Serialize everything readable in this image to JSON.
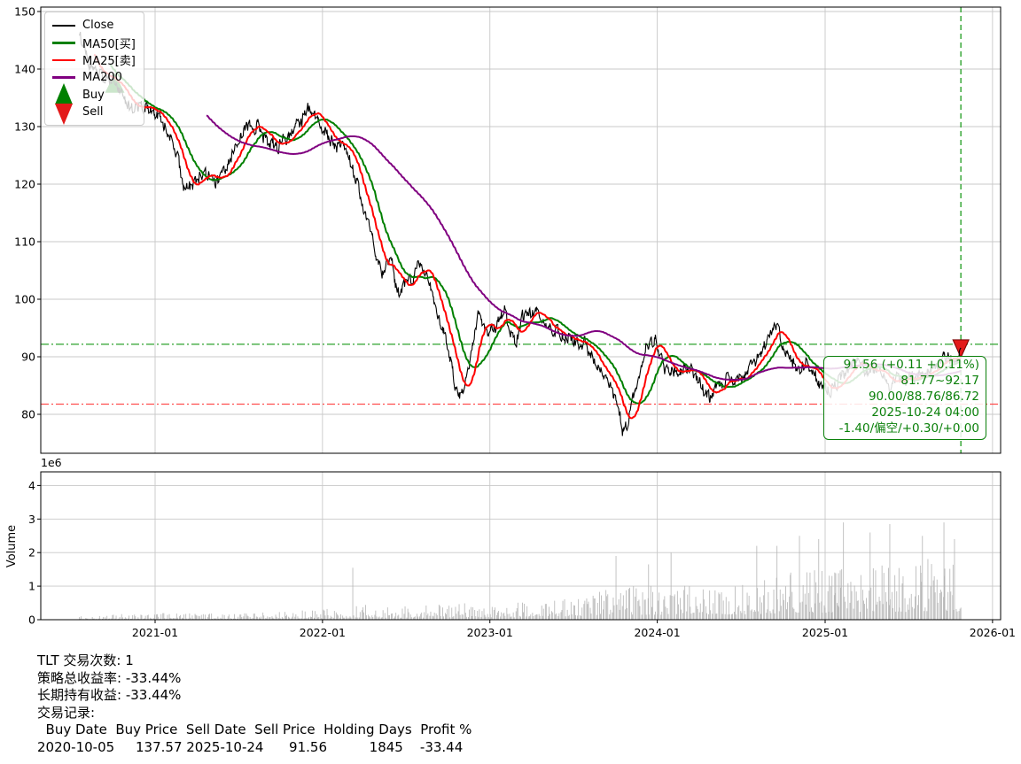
{
  "ticker": "TLT",
  "legend": {
    "items": [
      {
        "label": "Close",
        "color": "#000000",
        "kind": "line"
      },
      {
        "label": "MA50[买]",
        "color": "#008000",
        "kind": "line"
      },
      {
        "label": "MA25[卖]",
        "color": "#ff0000",
        "kind": "line"
      },
      {
        "label": "MA200",
        "color": "#800080",
        "kind": "line"
      },
      {
        "label": "Buy",
        "color": "#008000",
        "kind": "triangle-up"
      },
      {
        "label": "Sell",
        "color": "#e31a1a",
        "kind": "triangle-down"
      }
    ]
  },
  "annotation": {
    "color": "#0a800a",
    "lines": [
      "91.56 (+0.11 +0.11%)",
      "81.77~92.17",
      "90.00/88.76/86.72",
      "2025-10-24 04:00",
      "-1.40/偏空/+0.30/+0.00"
    ]
  },
  "footer": {
    "lines": [
      "TLT 交易次数: 1",
      "策略总收益率: -33.44%",
      "长期持有收益: -33.44%",
      "交易记录:",
      "  Buy Date  Buy Price  Sell Date  Sell Price  Holding Days  Profit %",
      "2020-10-05     137.57 2025-10-24      91.56          1845    -33.44"
    ]
  },
  "trade_table": {
    "columns": [
      "Buy Date",
      "Buy Price",
      "Sell Date",
      "Sell Price",
      "Holding Days",
      "Profit %"
    ],
    "rows": [
      [
        "2020-10-05",
        "137.57",
        "2025-10-24",
        "91.56",
        "1845",
        "-33.44"
      ]
    ]
  },
  "stats": {
    "trades": 1,
    "strategy_return": "-33.44%",
    "buy_hold_return": "-33.44%"
  },
  "chart_data": [
    {
      "type": "line",
      "panel": "price",
      "x_range": [
        "2020-07-20",
        "2025-10-24"
      ],
      "x_ticks": [
        "2021-01",
        "2022-01",
        "2023-01",
        "2024-01",
        "2025-01",
        "2026-01"
      ],
      "y_ticks": [
        80,
        90,
        100,
        110,
        120,
        130,
        140,
        150
      ],
      "ylim": [
        70.8,
        150.8
      ],
      "grid": true,
      "legend_position": "upper-left",
      "series": [
        {
          "name": "Close",
          "color": "#000000",
          "width": 1.1,
          "anchors": [
            [
              "2020-07-20",
              146.0
            ],
            [
              "2020-08-05",
              142.5
            ],
            [
              "2020-08-24",
              139.5
            ],
            [
              "2020-09-10",
              138.5
            ],
            [
              "2020-10-05",
              137.57
            ],
            [
              "2020-10-26",
              134.8
            ],
            [
              "2020-11-16",
              133.0
            ],
            [
              "2020-12-10",
              133.5
            ],
            [
              "2021-01-04",
              132.0
            ],
            [
              "2021-01-25",
              130.2
            ],
            [
              "2021-02-16",
              125.0
            ],
            [
              "2021-03-08",
              118.8
            ],
            [
              "2021-03-29",
              120.0
            ],
            [
              "2021-04-19",
              121.8
            ],
            [
              "2021-05-10",
              119.8
            ],
            [
              "2021-06-01",
              122.0
            ],
            [
              "2021-06-21",
              125.5
            ],
            [
              "2021-07-19",
              130.0
            ],
            [
              "2021-08-09",
              130.3
            ],
            [
              "2021-09-07",
              127.0
            ],
            [
              "2021-09-28",
              126.3
            ],
            [
              "2021-10-18",
              128.5
            ],
            [
              "2021-11-15",
              131.0
            ],
            [
              "2021-12-03",
              133.2
            ],
            [
              "2021-12-20",
              131.8
            ],
            [
              "2022-01-10",
              129.0
            ],
            [
              "2022-02-01",
              126.5
            ],
            [
              "2022-02-22",
              125.8
            ],
            [
              "2022-03-01",
              124.8
            ],
            [
              "2022-03-28",
              117.0
            ],
            [
              "2022-04-19",
              110.5
            ],
            [
              "2022-05-09",
              104.8
            ],
            [
              "2022-06-01",
              106.5
            ],
            [
              "2022-06-14",
              100.8
            ],
            [
              "2022-07-05",
              102.8
            ],
            [
              "2022-08-01",
              105.8
            ],
            [
              "2022-08-22",
              102.5
            ],
            [
              "2022-09-13",
              97.0
            ],
            [
              "2022-10-03",
              91.5
            ],
            [
              "2022-10-24",
              82.3
            ],
            [
              "2022-11-10",
              86.5
            ],
            [
              "2022-12-07",
              98.0
            ],
            [
              "2022-12-29",
              93.5
            ],
            [
              "2023-01-18",
              95.8
            ],
            [
              "2023-02-02",
              97.9
            ],
            [
              "2023-02-27",
              92.2
            ],
            [
              "2023-03-13",
              97.0
            ],
            [
              "2023-04-05",
              98.0
            ],
            [
              "2023-05-01",
              96.0
            ],
            [
              "2023-06-01",
              94.2
            ],
            [
              "2023-07-03",
              92.8
            ],
            [
              "2023-07-27",
              92.3
            ],
            [
              "2023-08-21",
              88.5
            ],
            [
              "2023-09-14",
              86.2
            ],
            [
              "2023-10-03",
              82.3
            ],
            [
              "2023-10-19",
              76.5
            ],
            [
              "2023-11-03",
              80.8
            ],
            [
              "2023-11-17",
              84.8
            ],
            [
              "2023-12-06",
              92.0
            ],
            [
              "2023-12-27",
              93.5
            ],
            [
              "2024-01-16",
              88.2
            ],
            [
              "2024-02-13",
              87.0
            ],
            [
              "2024-03-07",
              88.5
            ],
            [
              "2024-04-25",
              82.8
            ],
            [
              "2024-05-15",
              84.8
            ],
            [
              "2024-06-04",
              86.2
            ],
            [
              "2024-07-01",
              85.8
            ],
            [
              "2024-08-02",
              89.2
            ],
            [
              "2024-09-17",
              95.2
            ],
            [
              "2024-10-15",
              89.5
            ],
            [
              "2024-11-06",
              87.2
            ],
            [
              "2024-11-20",
              89.2
            ],
            [
              "2024-12-18",
              85.0
            ],
            [
              "2025-01-13",
              84.2
            ],
            [
              "2025-02-12",
              86.8
            ],
            [
              "2025-03-14",
              90.2
            ],
            [
              "2025-04-07",
              86.5
            ],
            [
              "2025-04-25",
              88.0
            ],
            [
              "2025-05-21",
              84.8
            ],
            [
              "2025-06-16",
              86.2
            ],
            [
              "2025-07-15",
              86.0
            ],
            [
              "2025-08-15",
              87.8
            ],
            [
              "2025-09-17",
              89.9
            ],
            [
              "2025-10-08",
              89.3
            ],
            [
              "2025-10-17",
              90.3
            ],
            [
              "2025-10-24",
              91.56
            ]
          ]
        },
        {
          "name": "MA50[买]",
          "color": "#008000",
          "width": 2.0,
          "derived": "moving_average",
          "window": 50
        },
        {
          "name": "MA25[卖]",
          "color": "#ff0000",
          "width": 2.0,
          "derived": "moving_average",
          "window": 25
        },
        {
          "name": "MA200",
          "color": "#800080",
          "width": 2.0,
          "derived": "moving_average",
          "window": 200
        }
      ],
      "guides": {
        "high_line": {
          "value": 92.17,
          "color": "#2da22d",
          "style": "dashdot"
        },
        "low_line": {
          "value": 81.77,
          "color": "#ff3030",
          "style": "dashdot"
        },
        "last_date_vline": {
          "date": "2025-10-24",
          "color": "#2da22d",
          "style": "dashed"
        }
      },
      "markers": [
        {
          "type": "buy",
          "date": "2020-10-05",
          "price": 137.57,
          "shape": "triangle-up",
          "color": "#008000"
        },
        {
          "type": "sell",
          "date": "2025-10-24",
          "price": 91.56,
          "shape": "triangle-down",
          "color": "#e31a1a"
        }
      ],
      "last_values": {
        "close": 91.56,
        "change": "+0.11",
        "change_pct": "+0.11%",
        "range_low": 81.77,
        "range_high": 92.17,
        "ma25": 90.0,
        "ma50": 88.76,
        "ma200": 86.72,
        "datetime": "2025-10-24 04:00"
      }
    },
    {
      "type": "bar",
      "panel": "volume",
      "ylabel": "Volume",
      "scale_label": "1e6",
      "y_ticks": [
        0,
        1,
        2,
        3,
        4
      ],
      "ylim": [
        0,
        4.4
      ],
      "bar_color": "#b3b3b3",
      "envelope_avg_1e6": [
        [
          "2020-07-20",
          0.07
        ],
        [
          "2020-10-01",
          0.1
        ],
        [
          "2021-01-01",
          0.13
        ],
        [
          "2021-04-01",
          0.12
        ],
        [
          "2021-07-01",
          0.12
        ],
        [
          "2021-10-01",
          0.15
        ],
        [
          "2022-01-01",
          0.2
        ],
        [
          "2022-03-15",
          0.3
        ],
        [
          "2022-06-01",
          0.26
        ],
        [
          "2022-09-01",
          0.3
        ],
        [
          "2022-12-01",
          0.32
        ],
        [
          "2023-03-01",
          0.33
        ],
        [
          "2023-06-01",
          0.38
        ],
        [
          "2023-08-01",
          0.5
        ],
        [
          "2023-10-15",
          0.72
        ],
        [
          "2023-12-15",
          0.65
        ],
        [
          "2024-02-01",
          0.6
        ],
        [
          "2024-04-15",
          0.72
        ],
        [
          "2024-07-01",
          0.7
        ],
        [
          "2024-09-01",
          0.8
        ],
        [
          "2024-11-01",
          0.95
        ],
        [
          "2025-01-15",
          0.95
        ],
        [
          "2025-03-01",
          1.0
        ],
        [
          "2025-05-01",
          1.1
        ],
        [
          "2025-07-01",
          1.05
        ],
        [
          "2025-09-01",
          1.2
        ],
        [
          "2025-10-24",
          1.1
        ]
      ],
      "spikes_1e6": [
        [
          "2022-03-08",
          1.55
        ],
        [
          "2023-10-03",
          1.9
        ],
        [
          "2023-12-13",
          1.65
        ],
        [
          "2024-01-31",
          2.0
        ],
        [
          "2024-08-05",
          2.2
        ],
        [
          "2024-09-18",
          2.2
        ],
        [
          "2024-11-06",
          2.5
        ],
        [
          "2024-12-18",
          2.4
        ],
        [
          "2025-02-10",
          2.9
        ],
        [
          "2025-04-09",
          2.6
        ],
        [
          "2025-05-22",
          2.85
        ],
        [
          "2025-08-01",
          2.5
        ],
        [
          "2025-09-17",
          2.9
        ],
        [
          "2025-10-10",
          2.4
        ]
      ]
    }
  ]
}
